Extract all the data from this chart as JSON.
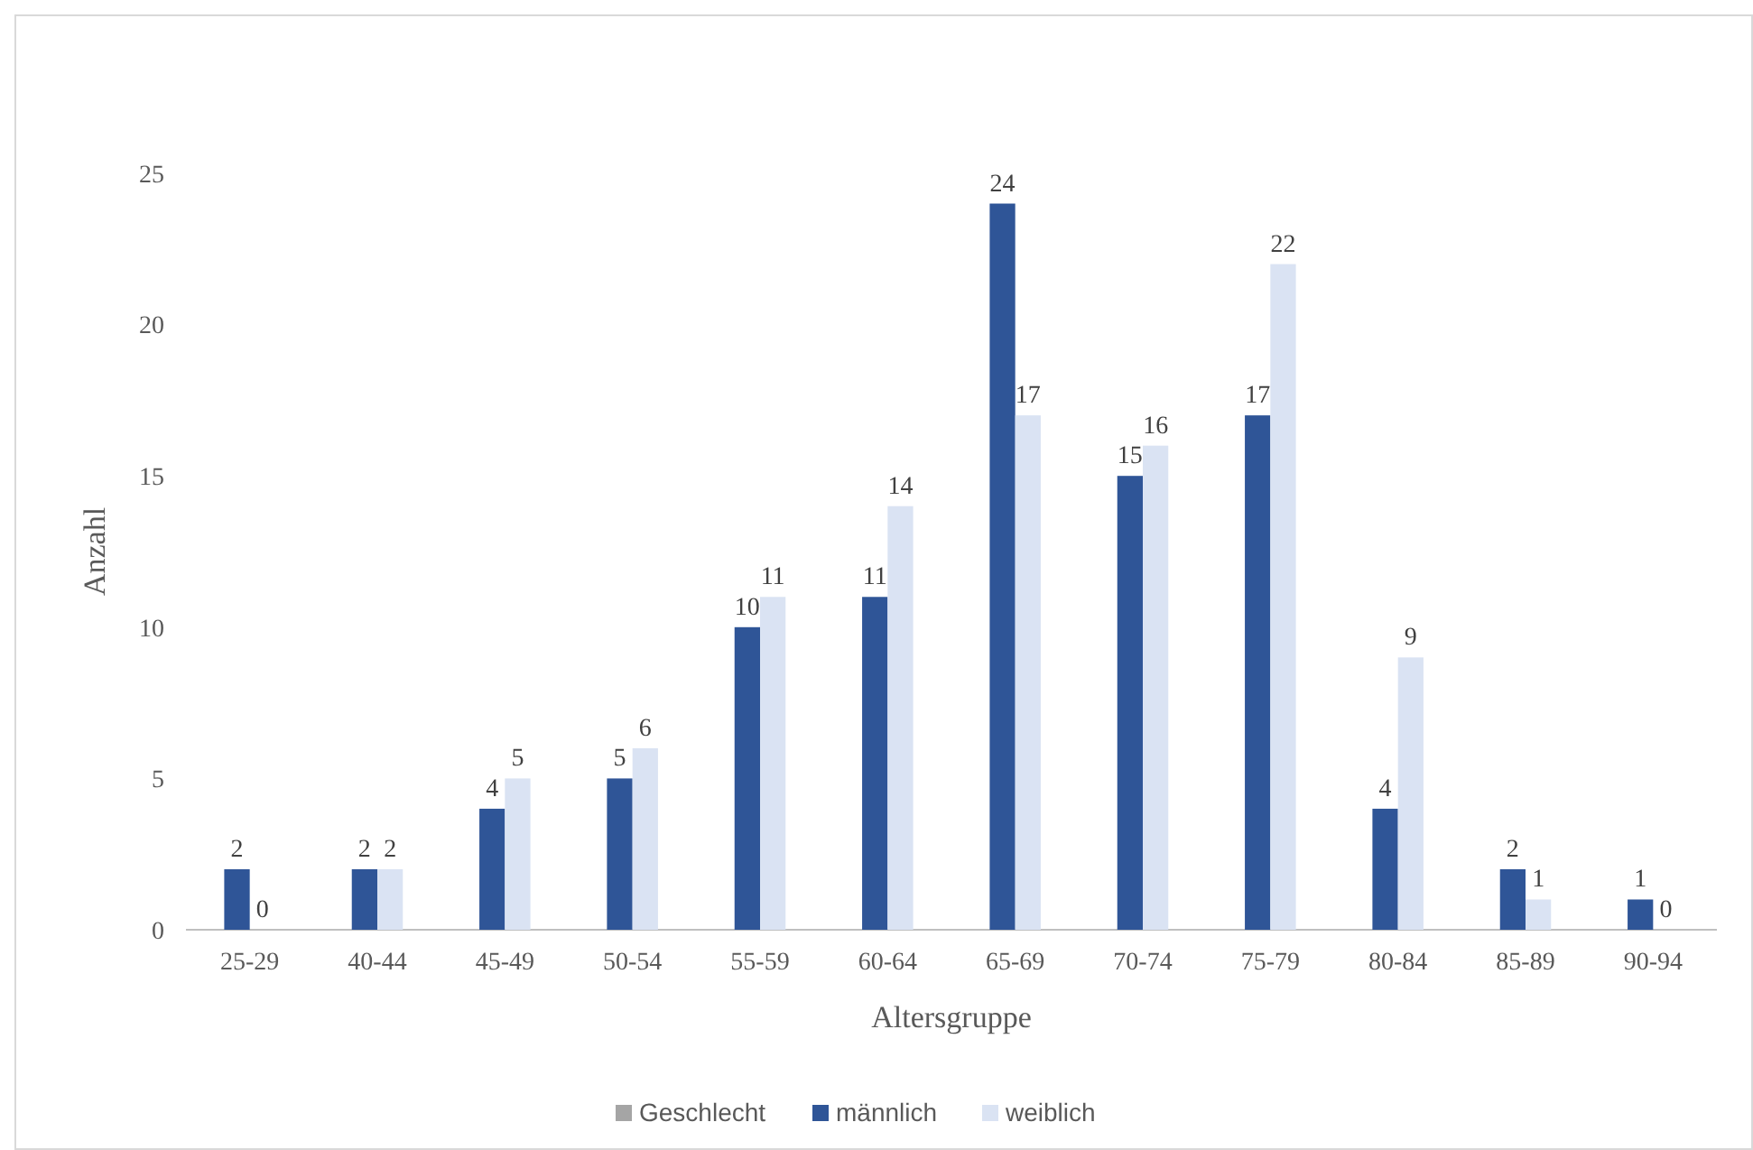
{
  "chart_data": {
    "type": "bar",
    "xlabel": "Altersgruppe",
    "ylabel": "Anzahl",
    "legend_title": "Geschlecht",
    "categories": [
      "25-29",
      "40-44",
      "45-49",
      "50-54",
      "55-59",
      "60-64",
      "65-69",
      "70-74",
      "75-79",
      "80-84",
      "85-89",
      "90-94"
    ],
    "series": [
      {
        "name": "männlich",
        "color": "#2f5597",
        "values": [
          2,
          2,
          4,
          5,
          10,
          11,
          24,
          15,
          17,
          4,
          2,
          1
        ]
      },
      {
        "name": "weiblich",
        "color": "#dae3f3",
        "values": [
          0,
          2,
          5,
          6,
          11,
          14,
          17,
          16,
          22,
          9,
          1,
          0
        ]
      }
    ],
    "ylim": [
      0,
      25
    ],
    "yticks": [
      0,
      5,
      10,
      15,
      20,
      25
    ],
    "grid": false,
    "legend": "bottom",
    "data_labels": true
  }
}
